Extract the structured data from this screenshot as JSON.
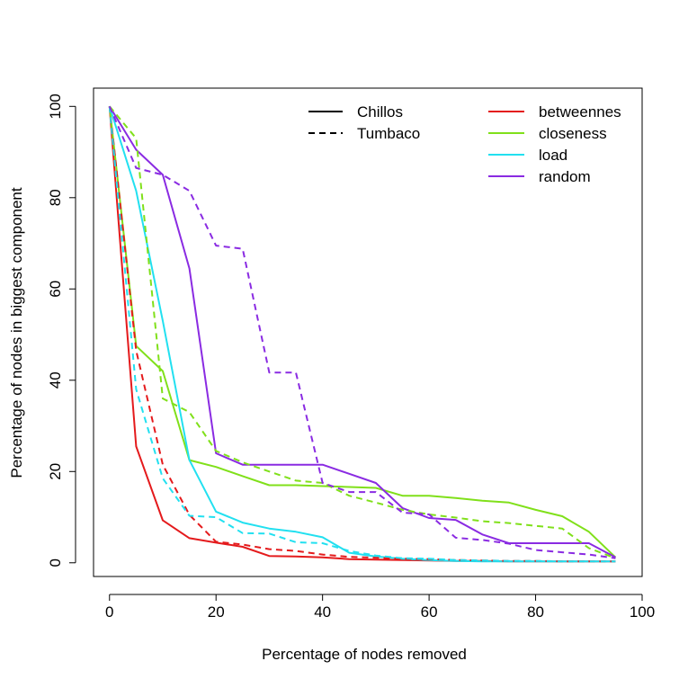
{
  "chart_data": {
    "type": "line",
    "title": "",
    "xlabel": "Percentage of nodes removed",
    "ylabel": "Percentage of nodes in biggest component",
    "xlim": [
      -3,
      100
    ],
    "ylim": [
      -3,
      104
    ],
    "xticks": [
      0,
      20,
      40,
      60,
      80,
      100
    ],
    "yticks": [
      0,
      20,
      40,
      60,
      80,
      100
    ],
    "grid": false,
    "legend": {
      "placement": "top-right",
      "network_entries": [
        {
          "label": "Chillos",
          "dash": "solid"
        },
        {
          "label": "Tumbaco",
          "dash": "dashed"
        }
      ],
      "method_entries": [
        {
          "label": "betweennes",
          "color": "#e41a1c"
        },
        {
          "label": "closeness",
          "color": "#80e01a"
        },
        {
          "label": "load",
          "color": "#22e0f0"
        },
        {
          "label": "random",
          "color": "#8a2be2"
        }
      ]
    },
    "series": [
      {
        "network": "Chillos",
        "method": "betweennes",
        "color": "#e41a1c",
        "dash": "solid",
        "x": [
          0,
          5,
          10,
          15,
          20,
          25,
          30,
          35,
          40,
          45,
          50,
          55,
          60,
          65,
          70,
          75,
          80,
          85,
          90,
          95
        ],
        "y": [
          100,
          25.5,
          9.3,
          5.4,
          4.4,
          3.5,
          1.5,
          1.4,
          1.2,
          0.8,
          0.7,
          0.6,
          0.5,
          0.4,
          0.4,
          0.3,
          0.3,
          0.3,
          0.3,
          0.3
        ]
      },
      {
        "network": "Chillos",
        "method": "closeness",
        "color": "#80e01a",
        "dash": "solid",
        "x": [
          0,
          5,
          10,
          15,
          20,
          25,
          30,
          35,
          40,
          45,
          50,
          55,
          60,
          65,
          70,
          75,
          80,
          85,
          90,
          95
        ],
        "y": [
          100,
          47.5,
          42,
          22.5,
          21,
          19,
          17,
          17,
          16.8,
          16.6,
          16.4,
          14.7,
          14.7,
          14.2,
          13.6,
          13.2,
          11.6,
          10.2,
          6.8,
          1.2
        ]
      },
      {
        "network": "Chillos",
        "method": "load",
        "color": "#22e0f0",
        "dash": "solid",
        "x": [
          0,
          5,
          10,
          15,
          20,
          25,
          30,
          35,
          40,
          45,
          50,
          55,
          60,
          65,
          70,
          75,
          80,
          85,
          90,
          95
        ],
        "y": [
          100,
          81.5,
          53,
          22.5,
          11.2,
          8.8,
          7.5,
          6.8,
          5.6,
          2.2,
          1.4,
          0.9,
          0.6,
          0.4,
          0.3,
          0.3,
          0.3,
          0.3,
          0.3,
          0.3
        ]
      },
      {
        "network": "Chillos",
        "method": "random",
        "color": "#8a2be2",
        "dash": "solid",
        "x": [
          0,
          5,
          10,
          15,
          20,
          25,
          30,
          35,
          40,
          45,
          50,
          55,
          60,
          65,
          70,
          75,
          80,
          85,
          90,
          95
        ],
        "y": [
          100,
          90.5,
          85,
          64.5,
          24,
          21.5,
          21.5,
          21.5,
          21.5,
          19.5,
          17.5,
          12,
          9.8,
          9.4,
          6.2,
          4.3,
          4.3,
          4.3,
          4.3,
          1.2
        ]
      },
      {
        "network": "Tumbaco",
        "method": "betweennes",
        "color": "#e41a1c",
        "dash": "dashed",
        "x": [
          0,
          5,
          10,
          15,
          20,
          25,
          30,
          35,
          40,
          45,
          50,
          55,
          60,
          65,
          70,
          75,
          80,
          85,
          90,
          95
        ],
        "y": [
          100,
          46.5,
          21.5,
          10.5,
          4.6,
          4,
          3,
          2.6,
          1.8,
          1.3,
          1.1,
          0.9,
          0.8,
          0.6,
          0.5,
          0.4,
          0.4,
          0.3,
          0.3,
          0.3
        ]
      },
      {
        "network": "Tumbaco",
        "method": "closeness",
        "color": "#80e01a",
        "dash": "dashed",
        "x": [
          0,
          5,
          10,
          15,
          20,
          25,
          30,
          35,
          40,
          45,
          50,
          55,
          60,
          65,
          70,
          75,
          80,
          85,
          90,
          95
        ],
        "y": [
          100,
          93,
          36,
          33,
          24.5,
          22,
          20,
          18,
          17.5,
          14.7,
          13.2,
          11.6,
          10.6,
          9.9,
          9.1,
          8.7,
          8.1,
          7.5,
          3.2,
          1
        ]
      },
      {
        "network": "Tumbaco",
        "method": "load",
        "color": "#22e0f0",
        "dash": "dashed",
        "x": [
          0,
          5,
          10,
          15,
          20,
          25,
          30,
          35,
          40,
          45,
          50,
          55,
          60,
          65,
          70,
          75,
          80,
          85,
          90,
          95
        ],
        "y": [
          100,
          38,
          18.5,
          10.3,
          10,
          6.5,
          6.4,
          4.5,
          4.3,
          2.6,
          1.6,
          1,
          0.9,
          0.6,
          0.5,
          0.4,
          0.4,
          0.3,
          0.3,
          0.3
        ]
      },
      {
        "network": "Tumbaco",
        "method": "random",
        "color": "#8a2be2",
        "dash": "dashed",
        "x": [
          0,
          5,
          10,
          15,
          20,
          25,
          30,
          35,
          40,
          45,
          50,
          55,
          60,
          65,
          70,
          75,
          80,
          85,
          90,
          95
        ],
        "y": [
          100,
          86.5,
          85,
          81.5,
          69.5,
          68.8,
          41.7,
          41.7,
          17.5,
          15.5,
          15.5,
          11,
          10.6,
          5.5,
          5,
          4.2,
          2.8,
          2.3,
          1.8,
          1
        ]
      }
    ]
  }
}
